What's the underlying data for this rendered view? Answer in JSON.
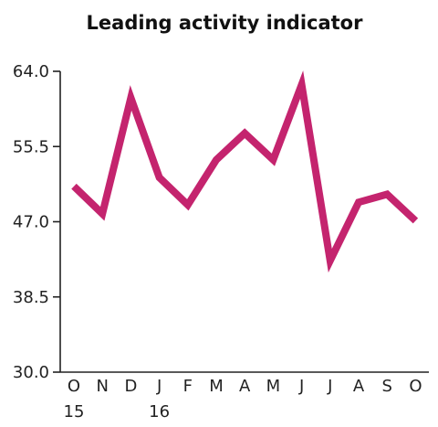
{
  "chart_data": {
    "type": "line",
    "title": "Leading activity indicator",
    "xlabel": "",
    "ylabel": "",
    "categories": [
      "O",
      "N",
      "D",
      "J",
      "F",
      "M",
      "A",
      "M",
      "J",
      "J",
      "A",
      "S",
      "O"
    ],
    "year_labels": [
      {
        "index": 0,
        "label": "15"
      },
      {
        "index": 3,
        "label": "16"
      }
    ],
    "y_ticks": [
      "30.0",
      "38.5",
      "47.0",
      "55.5",
      "64.0"
    ],
    "ylim": [
      30.0,
      64.0
    ],
    "grid": false,
    "series": [
      {
        "color": "#c4246e",
        "values": [
          51.0,
          47.9,
          61.0,
          52.0,
          48.9,
          54.0,
          57.0,
          54.0,
          62.5,
          42.6,
          49.2,
          50.1,
          47.1
        ]
      }
    ]
  }
}
